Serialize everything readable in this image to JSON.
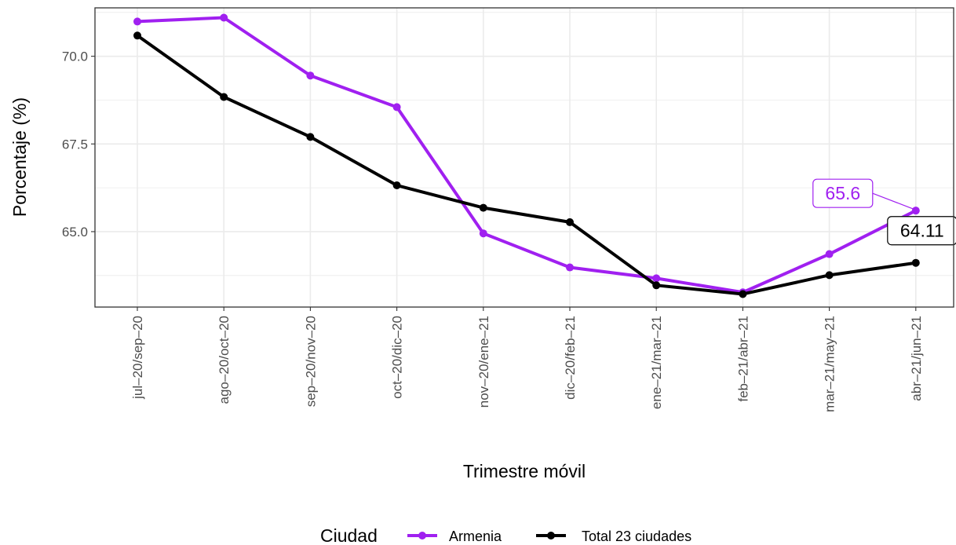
{
  "chart_data": {
    "type": "line",
    "xlabel": "Trimestre móvil",
    "ylabel": "Porcentaje (%)",
    "categories": [
      "jul–20/sep–20",
      "ago–20/oct–20",
      "sep–20/nov–20",
      "oct–20/dic–20",
      "nov–20/ene–21",
      "dic–20/feb–21",
      "ene–21/mar–21",
      "feb–21/abr–21",
      "mar–21/may–21",
      "abr–21/jun–21"
    ],
    "y_ticks": [
      "65.0",
      "67.5",
      "70.0"
    ],
    "ylim": [
      62.85,
      71.38
    ],
    "grid": true,
    "legend": {
      "title": "Ciudad",
      "position": "bottom"
    },
    "series": [
      {
        "name": "Armenia",
        "color": "#a020f0",
        "values": [
          70.99,
          71.1,
          69.45,
          68.55,
          64.95,
          63.98,
          63.67,
          63.27,
          64.36,
          65.6
        ],
        "end_label": "65.6"
      },
      {
        "name": "Total 23 ciudades",
        "color": "#000000",
        "values": [
          70.59,
          68.84,
          67.7,
          66.32,
          65.68,
          65.27,
          63.47,
          63.22,
          63.76,
          64.11
        ],
        "end_label": "64.11"
      }
    ]
  }
}
